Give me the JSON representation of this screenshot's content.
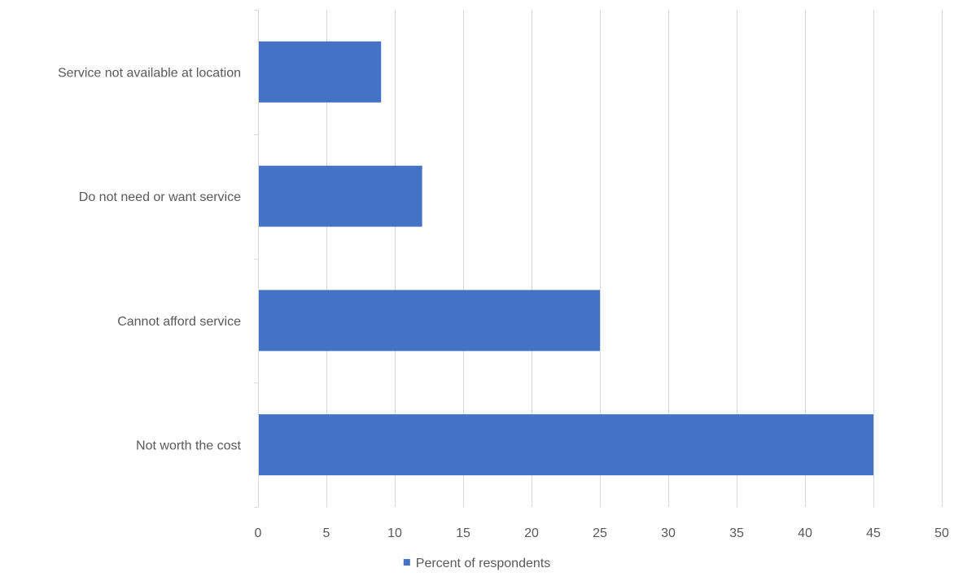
{
  "chart_data": {
    "type": "bar",
    "orientation": "horizontal",
    "categories": [
      "Service not available at location",
      "Do not need or want service",
      "Cannot afford service",
      "Not worth the cost"
    ],
    "series": [
      {
        "name": "Percent of respondents",
        "values": [
          9,
          12,
          25,
          45
        ],
        "color": "#4472C4"
      }
    ],
    "title": "",
    "xlabel": "",
    "ylabel": "",
    "xlim": [
      0,
      50
    ],
    "xticks": [
      0,
      5,
      10,
      15,
      20,
      25,
      30,
      35,
      40,
      45,
      50
    ],
    "grid": "vertical",
    "legend": {
      "position": "bottom",
      "entries": [
        "Percent of respondents"
      ]
    },
    "colors": {
      "bar": "#4472C4",
      "grid": "#D9D9D9",
      "text": "#595959"
    }
  }
}
